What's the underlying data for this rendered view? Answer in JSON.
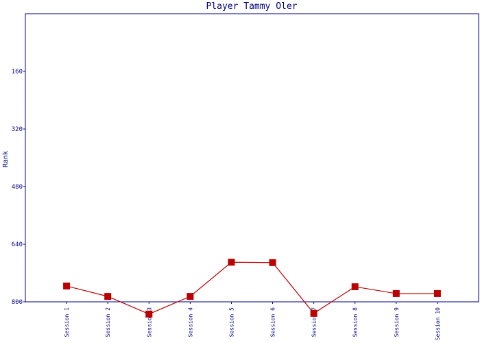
{
  "chart_data": {
    "type": "line",
    "title": "Player Tammy Oler",
    "y_label": "Rank",
    "categories": [
      "Session 1",
      "Session 2",
      "Session 3",
      "Session 4",
      "Session 5",
      "Session 6",
      "Session 7",
      "Session 8",
      "Session 9",
      "Session 10"
    ],
    "series": [
      {
        "name": "Rank",
        "color": "#bb0000",
        "values": [
          756,
          785,
          834,
          785,
          690,
          691,
          832,
          758,
          777,
          777
        ]
      }
    ],
    "ylim": [
      0,
      800
    ],
    "y_inverted": true,
    "yticks": [
      160,
      320,
      480,
      640,
      800
    ],
    "grid": false,
    "axis_color": "#000080"
  }
}
